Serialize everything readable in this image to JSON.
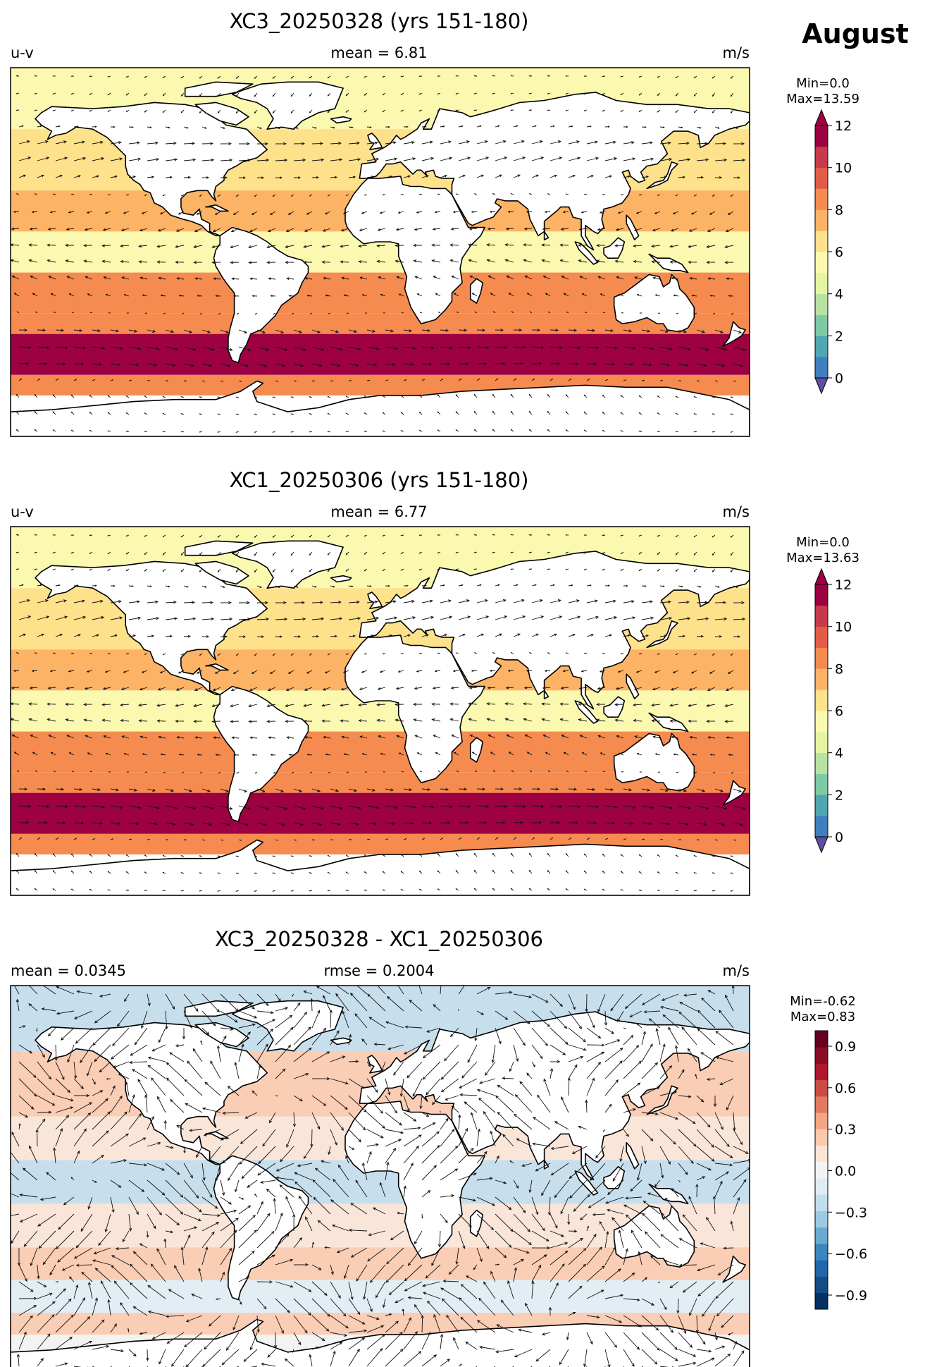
{
  "figure_title": "August",
  "map_land_color": "#ffffff",
  "panels": [
    {
      "id": "top",
      "title": "XC3_20250328 (yrs 151-180)",
      "left_label": "u-v",
      "center_label": "mean = 6.81",
      "right_label": "m/s",
      "stats": [
        "Min=0.0",
        "Max=13.59"
      ],
      "colorbar": {
        "ticks": [
          "0",
          "2",
          "4",
          "6",
          "8",
          "10",
          "12"
        ],
        "colors": [
          "#3f7fbe",
          "#4ea7b1",
          "#7ccba5",
          "#b8e2a1",
          "#e4f4a0",
          "#fbf8b0",
          "#fee18b",
          "#fdb365",
          "#f68b50",
          "#e45c48",
          "#c83a4b",
          "#9e0142"
        ],
        "under_color": "#5e4fa2",
        "over_color": "#9e0142"
      }
    },
    {
      "id": "middle",
      "title": "XC1_20250306 (yrs 151-180)",
      "left_label": "u-v",
      "center_label": "mean = 6.77",
      "right_label": "m/s",
      "stats": [
        "Min=0.0",
        "Max=13.63"
      ],
      "colorbar": {
        "ticks": [
          "0",
          "2",
          "4",
          "6",
          "8",
          "10",
          "12"
        ],
        "colors": [
          "#3f7fbe",
          "#4ea7b1",
          "#7ccba5",
          "#b8e2a1",
          "#e4f4a0",
          "#fbf8b0",
          "#fee18b",
          "#fdb365",
          "#f68b50",
          "#e45c48",
          "#c83a4b",
          "#9e0142"
        ],
        "under_color": "#5e4fa2",
        "over_color": "#9e0142"
      }
    },
    {
      "id": "bottom",
      "title": "XC3_20250328 - XC1_20250306",
      "left_label": "mean = 0.0345",
      "center_label": "rmse = 0.2004",
      "right_label": "m/s",
      "stats": [
        "Min=-0.62",
        "Max=0.83"
      ],
      "colorbar": {
        "ticks": [
          "−0.9",
          "−0.6",
          "−0.3",
          "0.0",
          "0.3",
          "0.6",
          "0.9"
        ],
        "colors": [
          "#053061",
          "#134c87",
          "#2166ac",
          "#3a87bd",
          "#6aacd0",
          "#9ccae1",
          "#c2ddec",
          "#e0ecf4",
          "#f3f3f3",
          "#fbe3d6",
          "#fbc9ae",
          "#f4a582",
          "#e07b62",
          "#cc4c44",
          "#b2182b",
          "#8a0c25",
          "#67001f"
        ]
      }
    }
  ],
  "chart_data": [
    {
      "type": "heatmap",
      "title": "XC3_20250328 (yrs 151-180)",
      "variable": "u-v",
      "units": "m/s",
      "mean": 6.81,
      "min": 0.0,
      "max": 13.59,
      "colorbar_range": [
        0,
        12
      ],
      "colorbar_ticks": [
        0,
        2,
        4,
        6,
        8,
        10,
        12
      ],
      "zonal_band_speeds": [
        {
          "lat_range": [
            60,
            90
          ],
          "speed": 5
        },
        {
          "lat_range": [
            30,
            60
          ],
          "speed": 6
        },
        {
          "lat_range": [
            10,
            30
          ],
          "speed": 7.5
        },
        {
          "lat_range": [
            -10,
            10
          ],
          "speed": 5
        },
        {
          "lat_range": [
            -30,
            -10
          ],
          "speed": 8
        },
        {
          "lat_range": [
            -40,
            -30
          ],
          "speed": 8.5
        },
        {
          "lat_range": [
            -60,
            -40
          ],
          "speed": 11.5
        },
        {
          "lat_range": [
            -70,
            -60
          ],
          "speed": 8
        }
      ]
    },
    {
      "type": "heatmap",
      "title": "XC1_20250306 (yrs 151-180)",
      "variable": "u-v",
      "units": "m/s",
      "mean": 6.77,
      "min": 0.0,
      "max": 13.63,
      "colorbar_range": [
        0,
        12
      ],
      "colorbar_ticks": [
        0,
        2,
        4,
        6,
        8,
        10,
        12
      ],
      "zonal_band_speeds": [
        {
          "lat_range": [
            60,
            90
          ],
          "speed": 5
        },
        {
          "lat_range": [
            30,
            60
          ],
          "speed": 6
        },
        {
          "lat_range": [
            10,
            30
          ],
          "speed": 7.5
        },
        {
          "lat_range": [
            -10,
            10
          ],
          "speed": 5
        },
        {
          "lat_range": [
            -30,
            -10
          ],
          "speed": 8
        },
        {
          "lat_range": [
            -40,
            -30
          ],
          "speed": 8.5
        },
        {
          "lat_range": [
            -60,
            -40
          ],
          "speed": 11.5
        },
        {
          "lat_range": [
            -70,
            -60
          ],
          "speed": 8
        }
      ]
    },
    {
      "type": "heatmap",
      "title": "XC3_20250328 - XC1_20250306",
      "units": "m/s",
      "mean": 0.0345,
      "rmse": 0.2004,
      "min": -0.62,
      "max": 0.83,
      "colorbar_range": [
        -1.0,
        1.0
      ],
      "colorbar_ticks": [
        -0.9,
        -0.6,
        -0.3,
        0.0,
        0.3,
        0.6,
        0.9
      ],
      "zonal_band_differences": [
        {
          "lat_range": [
            60,
            90
          ],
          "diff": -0.2
        },
        {
          "lat_range": [
            30,
            60
          ],
          "diff": 0.2
        },
        {
          "lat_range": [
            10,
            30
          ],
          "diff": 0.1
        },
        {
          "lat_range": [
            -10,
            10
          ],
          "diff": -0.2
        },
        {
          "lat_range": [
            -30,
            -10
          ],
          "diff": 0.15
        },
        {
          "lat_range": [
            -45,
            -30
          ],
          "diff": 0.25
        },
        {
          "lat_range": [
            -60,
            -45
          ],
          "diff": -0.1
        },
        {
          "lat_range": [
            -70,
            -60
          ],
          "diff": 0.2
        }
      ]
    }
  ]
}
